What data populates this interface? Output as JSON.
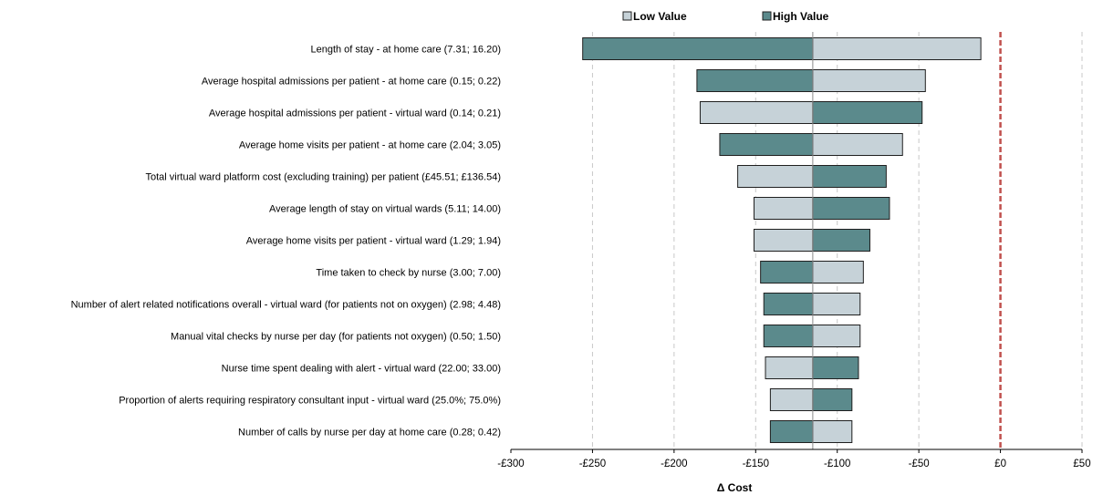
{
  "chart_data": {
    "type": "bar",
    "orientation": "horizontal",
    "xlabel": "Δ Cost",
    "xlim": [
      -300,
      50
    ],
    "x_ticks": [
      -300,
      -250,
      -200,
      -150,
      -100,
      -50,
      0,
      50
    ],
    "x_tick_labels": [
      "-£300",
      "-£250",
      "-£200",
      "-£150",
      "-£100",
      "-£50",
      "£0",
      "£50"
    ],
    "base_value": -115,
    "reference_line": 0,
    "grid": true,
    "legend_position": "top",
    "colors": {
      "low": "#c6d2d8",
      "high": "#5b8a8c",
      "reference": "#c0504d"
    },
    "series_names": [
      "Low Value",
      "High Value"
    ],
    "categories": [
      "Length of stay - at home care (7.31; 16.20)",
      "Average hospital admissions per patient - at home care (0.15; 0.22)",
      "Average hospital admissions per patient - virtual ward (0.14; 0.21)",
      "Average home visits per patient - at home care (2.04; 3.05)",
      "Total virtual ward platform cost (excluding training) per patient (£45.51; £136.54)",
      "Average length of stay on virtual wards (5.11; 14.00)",
      "Average home visits per patient - virtual ward (1.29; 1.94)",
      "Time taken to check by nurse (3.00; 7.00)",
      "Number of alert related notifications overall - virtual ward (for patients not on oxygen) (2.98; 4.48)",
      "Manual vital checks by nurse per day (for patients not oxygen) (0.50; 1.50)",
      "Nurse time spent dealing with alert - virtual ward (22.00; 33.00)",
      "Proportion of alerts requiring respiratory consultant input - virtual ward (25.0%; 75.0%)",
      "Number of calls by nurse per day at home care (0.28; 0.42)"
    ],
    "low_values": [
      -12,
      -46,
      -184,
      -60,
      -161,
      -151,
      -151,
      -84,
      -86,
      -86,
      -144,
      -141,
      -91
    ],
    "high_values": [
      -256,
      -186,
      -48,
      -172,
      -70,
      -68,
      -80,
      -147,
      -145,
      -145,
      -87,
      -91,
      -141
    ]
  }
}
